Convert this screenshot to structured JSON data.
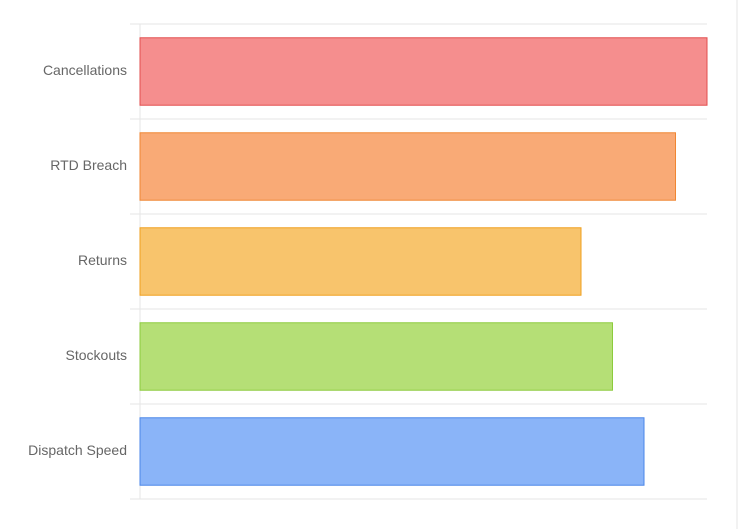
{
  "chart_data": {
    "type": "hbar",
    "categories": [
      "Cancellations",
      "RTD Breach",
      "Returns",
      "Stockouts",
      "Dispatch Speed"
    ],
    "values": [
      18,
      17,
      14,
      15,
      16
    ],
    "colors": [
      "#f58e8e",
      "#f9aa76",
      "#f8c46c",
      "#b5df76",
      "#8ab4f8"
    ],
    "border_colors": [
      "#e24d4d",
      "#f08632",
      "#ef9f1e",
      "#8ccb3c",
      "#4a86e8"
    ],
    "xlim": [
      0,
      18
    ],
    "grid": true
  }
}
